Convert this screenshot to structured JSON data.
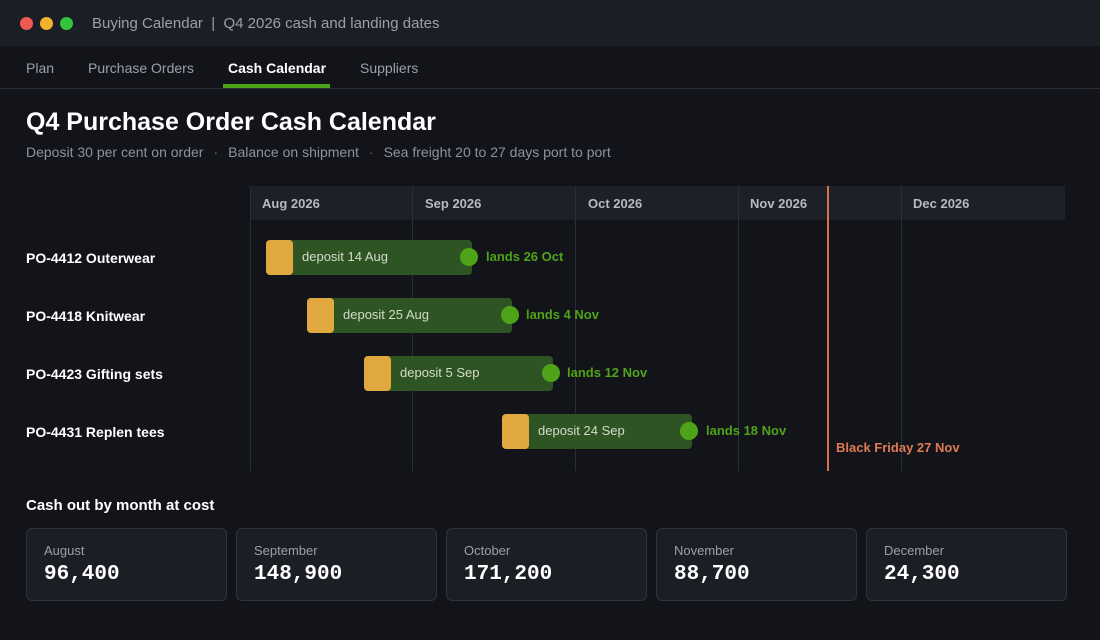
{
  "window": {
    "title": "Buying Calendar  |  Q4 2026 cash and landing dates"
  },
  "tabs": [
    {
      "label": "Plan",
      "active": false
    },
    {
      "label": "Purchase Orders",
      "active": false
    },
    {
      "label": "Cash Calendar",
      "active": true
    },
    {
      "label": "Suppliers",
      "active": false
    }
  ],
  "page": {
    "title": "Q4 Purchase Order Cash Calendar",
    "subtitle_parts": [
      "Deposit 30 per cent on order",
      "Balance on shipment",
      "Sea freight 20 to 27 days port to port"
    ],
    "subtitle_separator": "·"
  },
  "timeline": {
    "months": [
      "Aug 2026",
      "Sep 2026",
      "Oct 2026",
      "Nov 2026",
      "Dec 2026"
    ],
    "orders": [
      {
        "label": "PO-4412 Outerwear",
        "deposit_label": "deposit 14 Aug",
        "land_label": "lands 26 Oct"
      },
      {
        "label": "PO-4418 Knitwear",
        "deposit_label": "deposit 25 Aug",
        "land_label": "lands 4 Nov"
      },
      {
        "label": "PO-4423 Gifting sets",
        "deposit_label": "deposit 5 Sep",
        "land_label": "lands 12 Nov"
      },
      {
        "label": "PO-4431 Replen tees",
        "deposit_label": "deposit 24 Sep",
        "land_label": "lands 18 Nov"
      }
    ],
    "marker": {
      "label": "Black Friday 27 Nov"
    }
  },
  "cash_section": {
    "title": "Cash out by month at cost",
    "cards": [
      {
        "month": "August",
        "value": "96,400"
      },
      {
        "month": "September",
        "value": "148,900"
      },
      {
        "month": "October",
        "value": "171,200"
      },
      {
        "month": "November",
        "value": "88,700"
      },
      {
        "month": "December",
        "value": "24,300"
      }
    ]
  },
  "colors": {
    "accent": "#4fa318",
    "deposit": "#e0a83e",
    "bar": "#2e5423",
    "marker": "#d9704f"
  }
}
